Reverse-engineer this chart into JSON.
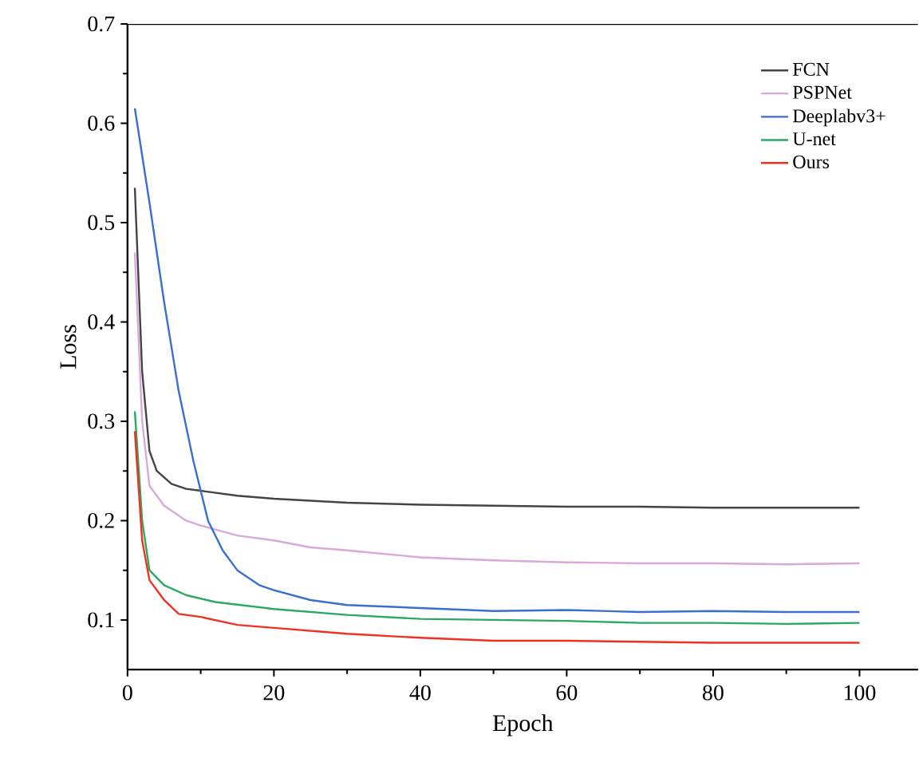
{
  "chart_data": {
    "type": "line",
    "xlabel": "Epoch",
    "ylabel": "Loss",
    "xlim": [
      0,
      108
    ],
    "xticks": [
      0,
      20,
      40,
      60,
      80,
      100
    ],
    "ylim": [
      0.05,
      0.7
    ],
    "yticks": [
      0.1,
      0.2,
      0.3,
      0.4,
      0.5,
      0.6,
      0.7
    ],
    "legend": "top right",
    "grid": false,
    "marker": "none",
    "line_style": "solid",
    "series": [
      {
        "name": "FCN",
        "color": "#444444",
        "x": [
          1,
          2,
          3,
          4,
          6,
          8,
          10,
          15,
          20,
          30,
          40,
          50,
          60,
          70,
          80,
          90,
          100
        ],
        "values": [
          0.535,
          0.35,
          0.27,
          0.25,
          0.237,
          0.232,
          0.23,
          0.225,
          0.222,
          0.218,
          0.216,
          0.215,
          0.214,
          0.214,
          0.213,
          0.213,
          0.213
        ]
      },
      {
        "name": "PSPNet",
        "color": "#d9a9d9",
        "x": [
          1,
          2,
          3,
          5,
          8,
          10,
          15,
          20,
          25,
          30,
          40,
          50,
          60,
          70,
          80,
          90,
          100
        ],
        "values": [
          0.47,
          0.3,
          0.235,
          0.215,
          0.2,
          0.195,
          0.185,
          0.18,
          0.173,
          0.17,
          0.163,
          0.16,
          0.158,
          0.157,
          0.157,
          0.156,
          0.157
        ]
      },
      {
        "name": "Deeplabv3+",
        "color": "#3a6fd0",
        "x": [
          1,
          3,
          5,
          7,
          9,
          11,
          13,
          15,
          18,
          20,
          25,
          30,
          40,
          50,
          60,
          70,
          80,
          90,
          100
        ],
        "values": [
          0.615,
          0.52,
          0.42,
          0.33,
          0.26,
          0.2,
          0.17,
          0.15,
          0.135,
          0.13,
          0.12,
          0.115,
          0.112,
          0.109,
          0.11,
          0.108,
          0.109,
          0.108,
          0.108
        ]
      },
      {
        "name": "U-net",
        "color": "#2aaa60",
        "x": [
          1,
          2,
          3,
          5,
          8,
          12,
          20,
          30,
          40,
          50,
          60,
          70,
          80,
          90,
          100
        ],
        "values": [
          0.31,
          0.2,
          0.15,
          0.135,
          0.125,
          0.118,
          0.111,
          0.105,
          0.101,
          0.1,
          0.099,
          0.097,
          0.097,
          0.096,
          0.097
        ]
      },
      {
        "name": "Ours",
        "color": "#f03020",
        "x": [
          1,
          2,
          3,
          5,
          7,
          10,
          15,
          20,
          30,
          40,
          50,
          60,
          70,
          80,
          90,
          100
        ],
        "values": [
          0.29,
          0.18,
          0.14,
          0.12,
          0.106,
          0.103,
          0.095,
          0.092,
          0.086,
          0.082,
          0.079,
          0.079,
          0.078,
          0.077,
          0.077,
          0.077
        ]
      }
    ]
  }
}
